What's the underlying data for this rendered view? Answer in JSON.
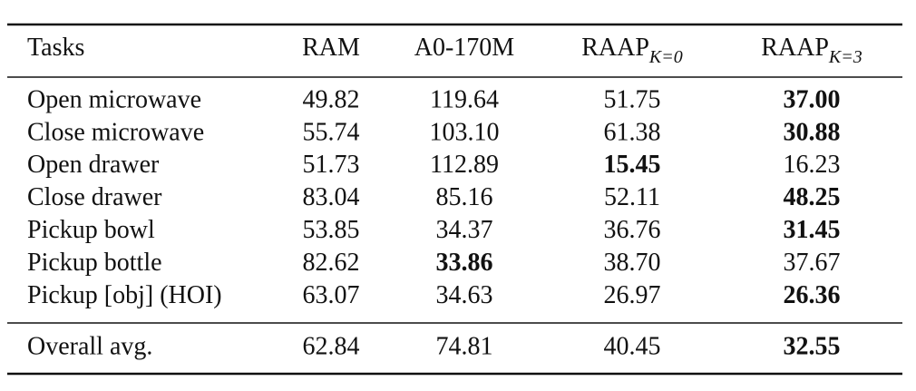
{
  "table": {
    "columns": [
      {
        "text": "Tasks"
      },
      {
        "text": "RAM"
      },
      {
        "text": "A0-170M"
      },
      {
        "text": "RAAP",
        "sub": "K=0"
      },
      {
        "text": "RAAP",
        "sub": "K=3"
      }
    ],
    "rows": [
      {
        "task": "Open microwave",
        "values": [
          "49.82",
          "119.64",
          "51.75",
          "37.00"
        ],
        "bold": 3
      },
      {
        "task": "Close microwave",
        "values": [
          "55.74",
          "103.10",
          "61.38",
          "30.88"
        ],
        "bold": 3
      },
      {
        "task": "Open drawer",
        "values": [
          "51.73",
          "112.89",
          "15.45",
          "16.23"
        ],
        "bold": 2
      },
      {
        "task": "Close drawer",
        "values": [
          "83.04",
          "85.16",
          "52.11",
          "48.25"
        ],
        "bold": 3
      },
      {
        "task": "Pickup bowl",
        "values": [
          "53.85",
          "34.37",
          "36.76",
          "31.45"
        ],
        "bold": 3
      },
      {
        "task": "Pickup bottle",
        "values": [
          "82.62",
          "33.86",
          "38.70",
          "37.67"
        ],
        "bold": 1
      },
      {
        "task": "Pickup [obj] (HOI)",
        "values": [
          "63.07",
          "34.63",
          "26.97",
          "26.36"
        ],
        "bold": 3
      }
    ],
    "summary": {
      "task": "Overall avg.",
      "values": [
        "62.84",
        "74.81",
        "40.45",
        "32.55"
      ],
      "bold": 3
    }
  }
}
